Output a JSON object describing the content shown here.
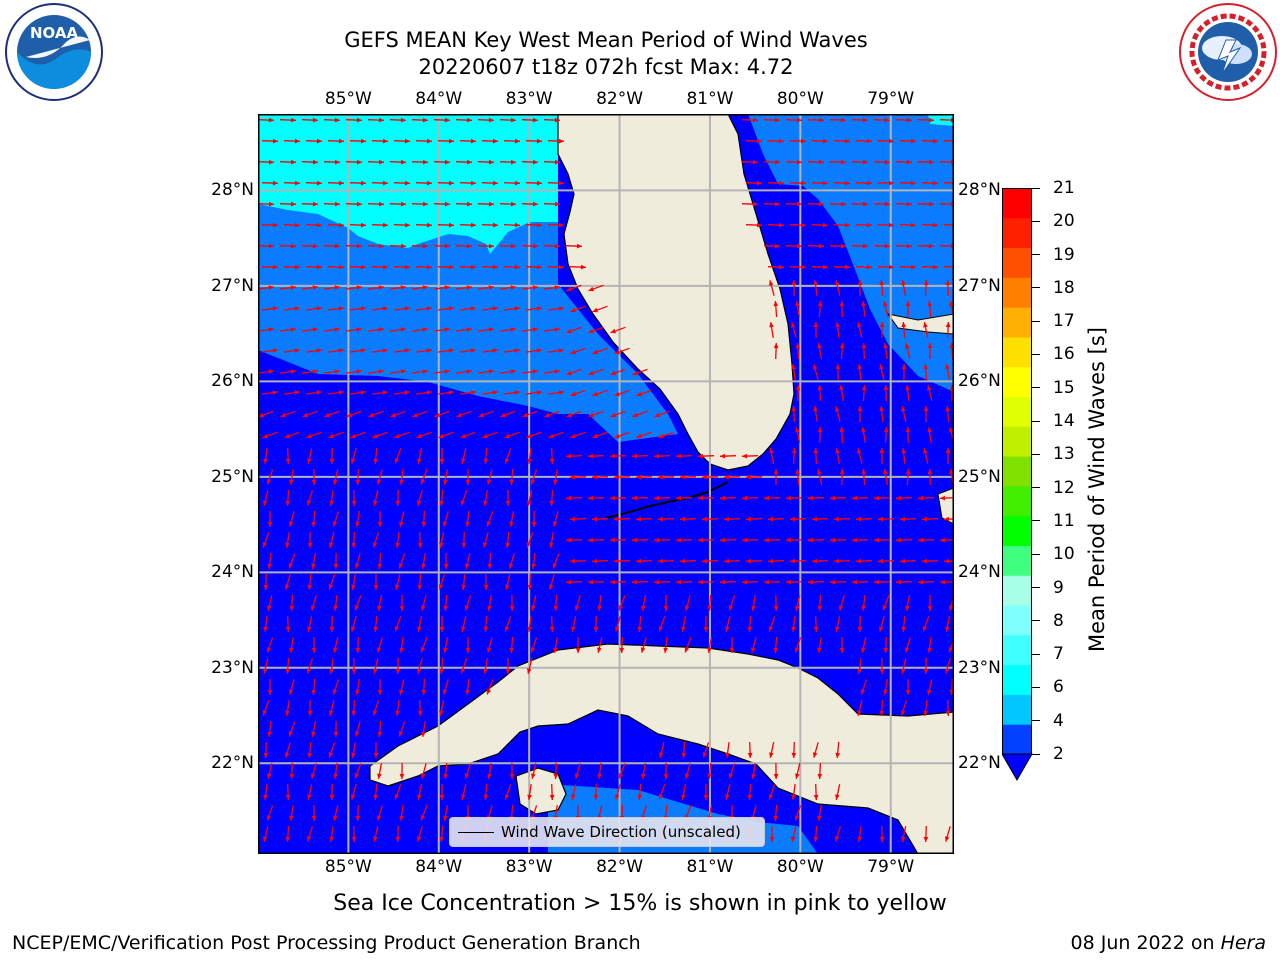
{
  "header": {
    "title_line1": "GEFS MEAN Key West Mean Period of Wind Waves",
    "title_line2": "20220607 t18z 072h fcst   Max: 4.72"
  },
  "logos": {
    "left": {
      "name": "NOAA",
      "text": "NOAA",
      "ring_text": "NATIONAL OCEANIC AND ATMOSPHERIC ADMINISTRATION · U.S. DEPARTMENT OF COMMERCE"
    },
    "right": {
      "name": "National Weather Service",
      "ring_text": "NATIONAL WEATHER SERVICE"
    }
  },
  "map": {
    "lon_ticks": [
      "85°W",
      "84°W",
      "83°W",
      "82°W",
      "81°W",
      "80°W",
      "79°W"
    ],
    "lat_ticks": [
      "28°N",
      "27°N",
      "26°N",
      "25°N",
      "24°N",
      "23°N",
      "22°N"
    ],
    "lon_values": [
      -85,
      -84,
      -83,
      -82,
      -81,
      -80,
      -79
    ],
    "lat_values": [
      28,
      27,
      26,
      25,
      24,
      23,
      22
    ],
    "extent": {
      "lon_min": -86,
      "lon_max": -78.3,
      "lat_min": 21.05,
      "lat_max": 28.8
    },
    "vector_color": "#ff0000",
    "land_color": "#efecdc",
    "legend_label": "Wind Wave Direction (unscaled)"
  },
  "colorbar": {
    "label": "Mean Period of Wind Waves [s]",
    "ticks": [
      "2",
      "4",
      "6",
      "7",
      "8",
      "9",
      "10",
      "11",
      "12",
      "13",
      "14",
      "15",
      "16",
      "17",
      "18",
      "19",
      "20",
      "21"
    ],
    "colors": [
      "#0040ff",
      "#00c8ff",
      "#00ffff",
      "#40ffff",
      "#80ffff",
      "#a8ffe8",
      "#40ff80",
      "#00ff00",
      "#40ee00",
      "#80e000",
      "#c0f000",
      "#e0ff00",
      "#ffff00",
      "#ffe000",
      "#ffb000",
      "#ff8000",
      "#ff5000",
      "#ff2000",
      "#ff0000"
    ],
    "under_color": "#0000ff"
  },
  "chart_data": {
    "type": "heatmap",
    "variable": "Mean Period of Wind Waves [s]",
    "max_value": 4.72,
    "field_zones": [
      {
        "range": "< 2",
        "color": "#0000ff"
      },
      {
        "range": "2-4",
        "color": "#0a7cff"
      },
      {
        "range": "4-6",
        "color": "#00ffff"
      }
    ]
  },
  "footer": {
    "ice_note": "Sea Ice Concentration > 15% is shown in pink to yellow",
    "credit": "NCEP/EMC/Verification Post Processing Product Generation Branch",
    "date": "08 Jun 2022 on ",
    "machine": "Hera"
  }
}
